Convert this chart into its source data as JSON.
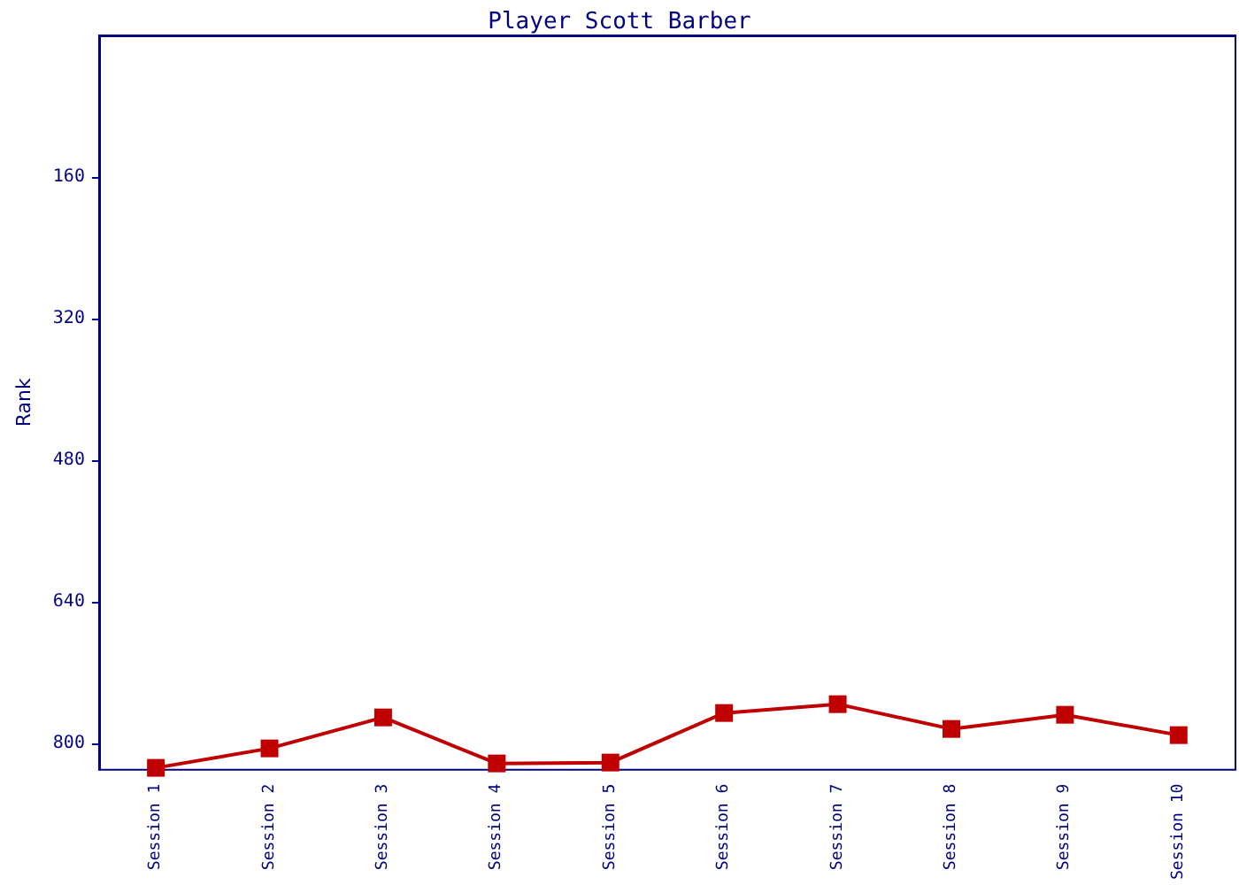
{
  "chart_data": {
    "type": "line",
    "title": "Player Scott Barber",
    "ylabel": "Rank",
    "categories": [
      "Session 1",
      "Session 2",
      "Session 3",
      "Session 4",
      "Session 5",
      "Session 6",
      "Session 7",
      "Session 8",
      "Session 9",
      "Session 10"
    ],
    "series": [
      {
        "color": "#c00000",
        "values": [
          828,
          806,
          771,
          823,
          822,
          766,
          756,
          784,
          768,
          791
        ]
      }
    ],
    "ylim": [
      830,
      0
    ],
    "yticks": [
      160,
      320,
      480,
      640,
      800
    ],
    "grid": false,
    "marker": "square",
    "line_style": "solid"
  }
}
